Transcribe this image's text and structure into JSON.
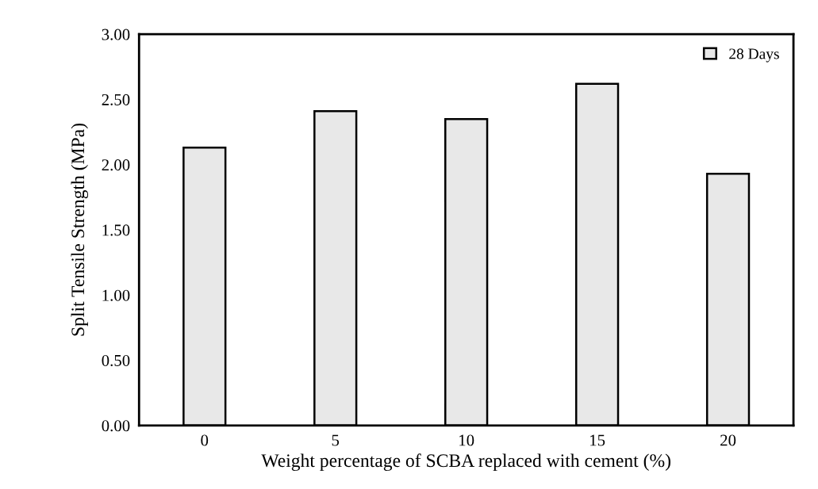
{
  "chart_data": {
    "type": "bar",
    "xlabel": "Weight percentage of SCBA replaced with cement (%)",
    "ylabel": "Split Tensile Strength (MPa)",
    "categories": [
      "0",
      "5",
      "10",
      "15",
      "20"
    ],
    "series": [
      {
        "name": "28 Days",
        "color": "#e8e8e8",
        "values": [
          2.13,
          2.41,
          2.35,
          2.62,
          1.93
        ]
      }
    ],
    "ylim": [
      0,
      3
    ],
    "yticks": [
      {
        "value": 0,
        "label": "0.00"
      },
      {
        "value": 0.5,
        "label": "0.50"
      },
      {
        "value": 1,
        "label": "1.00"
      },
      {
        "value": 1.5,
        "label": "1.50"
      },
      {
        "value": 2,
        "label": "2.00"
      },
      {
        "value": 2.5,
        "label": "2.50"
      },
      {
        "value": 3,
        "label": "3.00"
      }
    ],
    "grid": false,
    "legend": "top right"
  }
}
